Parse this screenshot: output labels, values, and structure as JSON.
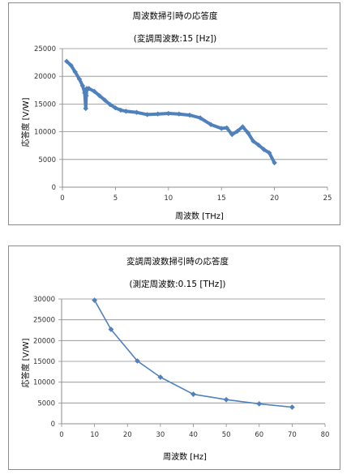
{
  "chart_data": [
    {
      "type": "line",
      "title": "周波数掃引時の応答度",
      "subtitle": "(変調周波数:15 [Hz])",
      "xlabel": "周波数 [THz]",
      "ylabel": "応答度 [V/W]",
      "xlim": [
        0,
        25
      ],
      "ylim": [
        0,
        25000
      ],
      "xticks": [
        0,
        5,
        10,
        15,
        20,
        25
      ],
      "yticks": [
        0,
        5000,
        10000,
        15000,
        20000,
        25000
      ],
      "grid": true,
      "legend": "none",
      "series": [
        {
          "color": "#4f81bd",
          "markers": true,
          "x": [
            0.4,
            0.8,
            1.2,
            1.6,
            1.9,
            2.1,
            2.2,
            2.25,
            2.3,
            2.5,
            3.0,
            3.5,
            4.0,
            4.5,
            5.0,
            5.5,
            6.0,
            7.0,
            8.0,
            9.0,
            10.0,
            11.0,
            12.0,
            13.0,
            14.0,
            15.0,
            15.5,
            16.0,
            16.5,
            17.0,
            17.5,
            18.0,
            18.5,
            19.0,
            19.5,
            20.0
          ],
          "y": [
            22700,
            22000,
            20800,
            19500,
            18300,
            17000,
            14200,
            16500,
            17800,
            17800,
            17300,
            16500,
            15700,
            14900,
            14300,
            13900,
            13700,
            13500,
            13100,
            13200,
            13300,
            13200,
            13000,
            12500,
            11300,
            10600,
            10700,
            9500,
            10100,
            10900,
            9800,
            8300,
            7600,
            6800,
            6200,
            4400
          ]
        }
      ]
    },
    {
      "type": "line",
      "title": "変調周波数掃引時の応答度",
      "subtitle": "(測定周波数:0.15 [THz])",
      "xlabel": "周波数 [Hz]",
      "ylabel": "応答度 [V/W]",
      "xlim": [
        0,
        80
      ],
      "ylim": [
        0,
        30000
      ],
      "xticks": [
        0,
        10,
        20,
        30,
        40,
        50,
        60,
        70,
        80
      ],
      "yticks": [
        0,
        5000,
        10000,
        15000,
        20000,
        25000,
        30000
      ],
      "grid": true,
      "legend": "none",
      "series": [
        {
          "color": "#4f81bd",
          "markers": true,
          "x": [
            10,
            15,
            23,
            30,
            40,
            50,
            60,
            70
          ],
          "y": [
            29700,
            22700,
            15100,
            11200,
            7100,
            5800,
            4800,
            4000
          ]
        }
      ]
    }
  ]
}
